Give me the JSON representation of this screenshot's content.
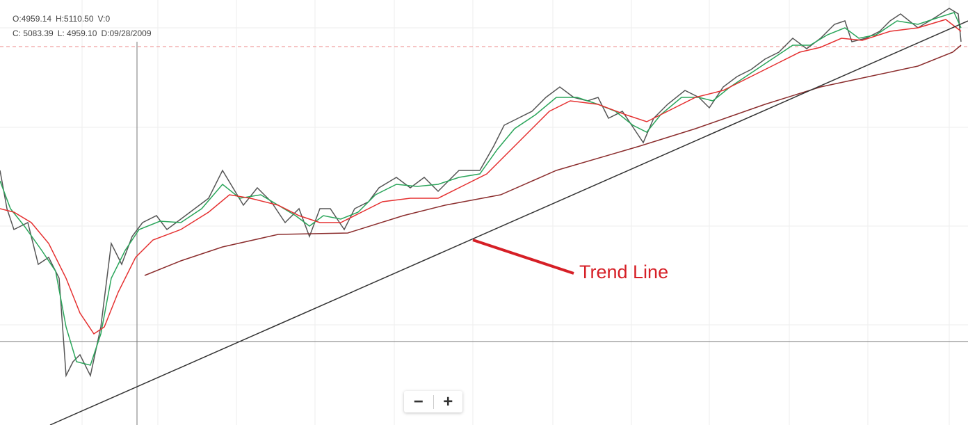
{
  "legend": {
    "open": "O:4959.14",
    "high": "H:5110.50",
    "volume": "V:0",
    "close": "C: 5083.39",
    "low": "L: 4959.10",
    "date": "D:09/28/2009"
  },
  "annotation": "Trend Line",
  "zoom": {
    "out": "−",
    "in": "+"
  }
}
